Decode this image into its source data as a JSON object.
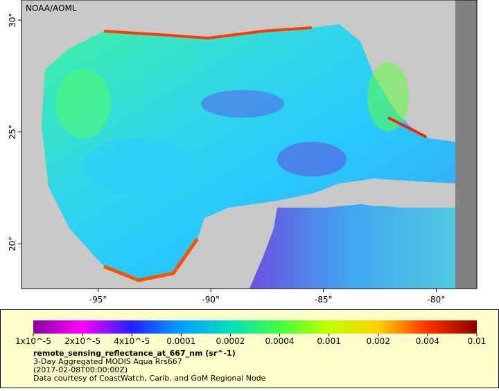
{
  "map": {
    "credit": "NOAA/AOML",
    "xlim": [
      -98.4,
      -78.2
    ],
    "ylim": [
      18.0,
      30.9
    ],
    "xticks": [
      {
        "value": -95,
        "label": "-95°"
      },
      {
        "value": -90,
        "label": "-90°"
      },
      {
        "value": -85,
        "label": "-85°"
      },
      {
        "value": -80,
        "label": "-80°"
      }
    ],
    "yticks": [
      {
        "value": 20,
        "label": "20°"
      },
      {
        "value": 25,
        "label": "25°"
      },
      {
        "value": 30,
        "label": "30°"
      }
    ]
  },
  "colorbar": {
    "labels": [
      "1x10^-5",
      "2x10^-5",
      "4x10^-5",
      "0.0001",
      "0.0002",
      "0.0004",
      "0.001",
      "0.002",
      "0.004",
      "0.01"
    ],
    "colors": [
      "#8b00a0",
      "#ff00ff",
      "#2020ff",
      "#00a0ff",
      "#00e0c0",
      "#40ff40",
      "#c0ff00",
      "#ffd000",
      "#ff3000",
      "#900000"
    ]
  },
  "caption": {
    "variable": "remote_sensing_reflectance_at_667_nm (sr^-1)",
    "lines": [
      "3-Day Aggregated MODIS Aqua Rrs667",
      "(2017-02-08T00:00:00Z)",
      "Data courtesy of CoastWatch, Carib. and GoM Regional Node"
    ]
  }
}
